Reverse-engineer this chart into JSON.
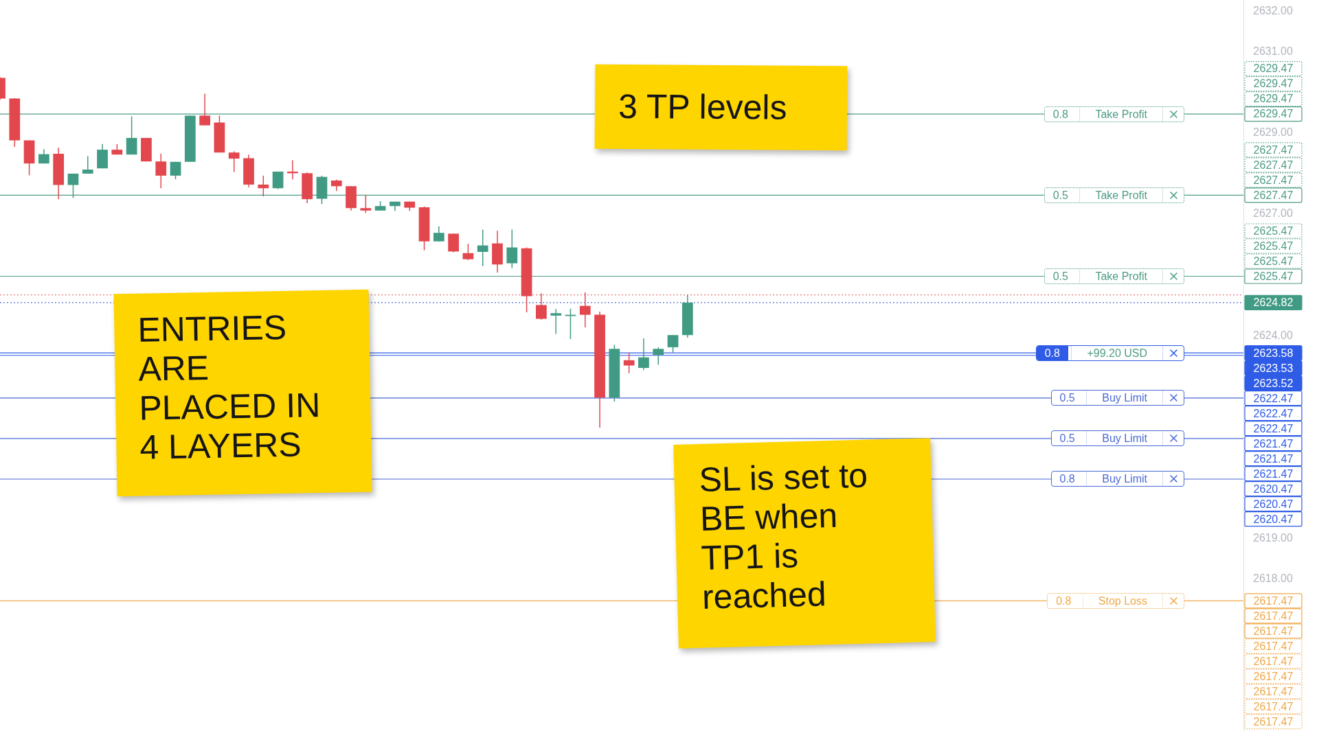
{
  "chart_data": {
    "type": "candlestick",
    "categories": [
      null,
      null,
      null,
      null,
      null,
      null,
      null,
      null,
      null,
      null,
      null,
      null,
      null,
      null,
      null,
      null,
      null,
      null,
      null,
      null,
      null,
      null,
      null,
      null,
      null,
      null,
      null,
      null,
      null,
      null,
      null,
      null,
      null,
      null,
      null,
      null,
      null,
      null,
      null,
      null,
      null,
      null,
      null,
      null,
      null,
      null,
      null,
      null,
      null,
      null,
      null,
      null,
      null,
      null,
      null,
      null,
      null,
      null,
      null,
      null,
      null,
      null,
      null,
      null,
      null,
      null,
      null,
      null,
      null,
      null,
      null,
      null,
      null,
      null,
      null,
      null,
      null,
      null,
      null,
      null,
      null,
      null,
      null,
      null,
      null,
      null
    ],
    "ohlc": [
      [
        2630.36,
        2630.38,
        2629.82,
        2629.85
      ],
      [
        2629.85,
        2629.86,
        2628.66,
        2628.82
      ],
      [
        2628.82,
        2628.82,
        2627.96,
        2628.25
      ],
      [
        2628.25,
        2628.6,
        2628.25,
        2628.48
      ],
      [
        2628.49,
        2628.64,
        2627.37,
        2627.72
      ],
      [
        2627.72,
        2628.0,
        2627.4,
        2628.0
      ],
      [
        2628.0,
        2628.43,
        2628.0,
        2628.1
      ],
      [
        2628.13,
        2628.73,
        2628.13,
        2628.59
      ],
      [
        2628.59,
        2628.73,
        2628.47,
        2628.47
      ],
      [
        2628.47,
        2629.41,
        2628.47,
        2628.88
      ],
      [
        2628.88,
        2628.88,
        2628.3,
        2628.3
      ],
      [
        2628.3,
        2628.49,
        2627.64,
        2627.95
      ],
      [
        2627.95,
        2628.29,
        2627.86,
        2628.29
      ],
      [
        2628.29,
        2629.43,
        2628.29,
        2629.43
      ],
      [
        2629.43,
        2629.97,
        2629.19,
        2629.19
      ],
      [
        2629.26,
        2629.43,
        2628.52,
        2628.52
      ],
      [
        2628.52,
        2628.55,
        2628.04,
        2628.37
      ],
      [
        2628.38,
        2628.47,
        2627.66,
        2627.73
      ],
      [
        2627.73,
        2627.95,
        2627.44,
        2627.64
      ],
      [
        2627.64,
        2628.05,
        2627.62,
        2628.05
      ],
      [
        2628.05,
        2628.33,
        2627.86,
        2628.01
      ],
      [
        2628.01,
        2628.03,
        2627.27,
        2627.37
      ],
      [
        2627.38,
        2627.95,
        2627.25,
        2627.92
      ],
      [
        2627.83,
        2627.85,
        2627.57,
        2627.69
      ],
      [
        2627.69,
        2627.69,
        2627.09,
        2627.15
      ],
      [
        2627.15,
        2627.47,
        2627.03,
        2627.09
      ],
      [
        2627.09,
        2627.32,
        2627.09,
        2627.2
      ],
      [
        2627.2,
        2627.31,
        2627.08,
        2627.31
      ],
      [
        2627.31,
        2627.31,
        2627.08,
        2627.16
      ],
      [
        2627.17,
        2627.19,
        2626.11,
        2626.33
      ],
      [
        2626.33,
        2626.7,
        2626.33,
        2626.54
      ],
      [
        2626.52,
        2626.52,
        2626.06,
        2626.08
      ],
      [
        2626.04,
        2626.27,
        2625.87,
        2625.89
      ],
      [
        2626.07,
        2626.62,
        2625.72,
        2626.23
      ],
      [
        2626.28,
        2626.59,
        2625.56,
        2625.76
      ],
      [
        2625.79,
        2626.62,
        2625.67,
        2626.18
      ],
      [
        2626.16,
        2626.18,
        2624.58,
        2624.98
      ],
      [
        2624.76,
        2625.05,
        2624.4,
        2624.42
      ],
      [
        2624.5,
        2624.66,
        2624.05,
        2624.56
      ],
      [
        2624.49,
        2624.67,
        2623.92,
        2624.52
      ],
      [
        2624.74,
        2625.07,
        2624.21,
        2624.52
      ],
      [
        2624.52,
        2624.6,
        2621.74,
        2622.48
      ],
      [
        2622.48,
        2623.78,
        2622.38,
        2623.68
      ],
      [
        2623.4,
        2623.58,
        2623.08,
        2623.27
      ],
      [
        2623.21,
        2623.94,
        2623.16,
        2623.47
      ],
      [
        2623.53,
        2623.72,
        2623.29,
        2623.68
      ],
      [
        2623.72,
        2624.02,
        2623.59,
        2624.02
      ],
      [
        2624.02,
        2625.01,
        2623.96,
        2624.82
      ],
      null,
      null,
      null,
      null,
      null,
      null,
      null,
      null,
      null,
      null,
      null,
      null,
      null,
      null,
      null,
      null,
      null,
      null,
      null,
      null,
      null,
      null,
      null,
      null,
      null,
      null,
      null,
      null,
      null,
      null,
      null,
      null,
      null,
      null,
      null,
      null,
      null,
      null
    ],
    "colors": [
      "#e3474e",
      "#e3474e",
      "#e3474e",
      "#419b84",
      "#e3474e",
      "#419b84",
      "#419b84",
      "#419b84",
      "#e3474e",
      "#419b84",
      "#e3474e",
      "#e3474e",
      "#419b84",
      "#419b84",
      "#e3474e",
      "#e3474e",
      "#e3474e",
      "#e3474e",
      "#e3474e",
      "#419b84",
      "#e3474e",
      "#e3474e",
      "#419b84",
      "#e3474e",
      "#e3474e",
      "#e3474e",
      "#419b84",
      "#419b84",
      "#e3474e",
      "#e3474e",
      "#419b84",
      "#e3474e",
      "#e3474e",
      "#419b84",
      "#e3474e",
      "#419b84",
      "#e3474e",
      "#e3474e",
      "#419b84",
      "#419b84",
      "#e3474e",
      "#e3474e",
      "#419b84",
      "#e3474e",
      "#419b84",
      "#419b84",
      "#419b84",
      "#419b84",
      null,
      null,
      null,
      null,
      null,
      null,
      null,
      null,
      null,
      null,
      null,
      null,
      null,
      null,
      null,
      null,
      null,
      null,
      null,
      null,
      null,
      null,
      null,
      null,
      null,
      null,
      null,
      null,
      null,
      null,
      null,
      null,
      null,
      null,
      null,
      null,
      null,
      null
    ],
    "ylim": [
      2614.26,
      2632.28
    ],
    "yticks": [
      {
        "value": 2618,
        "label": "2618.00"
      },
      {
        "value": 2619,
        "label": "2619.00"
      },
      {
        "value": 2624,
        "label": "2624.00"
      },
      {
        "value": 2627,
        "label": "2627.00"
      },
      {
        "value": 2629,
        "label": "2629.00"
      },
      {
        "value": 2631,
        "label": "2631.00"
      },
      {
        "value": 2632,
        "label": "2632.00"
      }
    ],
    "tick_labels": "y",
    "grid": false,
    "ref_lines": [
      {
        "axis": "y",
        "value": 2629.47,
        "label": "0.8 Take Profit",
        "color": "#4f9c86"
      },
      {
        "axis": "y",
        "value": 2627.47,
        "label": "0.5 Take Profit",
        "color": "#4f9c86"
      },
      {
        "axis": "y",
        "value": 2625.47,
        "label": "0.5 Take Profit",
        "color": "#4f9c86"
      },
      {
        "axis": "y",
        "value": 2625.01,
        "color": "#e57373",
        "line_style": "dotted"
      },
      {
        "axis": "y",
        "value": 2624.82,
        "color": "#4a69d6",
        "line_style": "dotted"
      },
      {
        "axis": "y",
        "value": 2623.58,
        "label": "0.8 +99.20 USD",
        "color": "#2f5ce6"
      },
      {
        "axis": "y",
        "value": 2623.52,
        "color": "#2f5ce6"
      },
      {
        "axis": "y",
        "value": 2622.47,
        "label": "0.5 Buy Limit",
        "color": "#4a69d6"
      },
      {
        "axis": "y",
        "value": 2621.47,
        "label": "0.5 Buy Limit",
        "color": "#4a69d6"
      },
      {
        "axis": "y",
        "value": 2620.47,
        "label": "0.8 Buy Limit",
        "color": "#4a69d6"
      },
      {
        "axis": "y",
        "value": 2617.47,
        "label": "0.8 Stop Loss",
        "color": "#f0a848"
      }
    ],
    "annotations": [
      "3 TP levels",
      "ENTRIES ARE PLACED IN 4 LAYERS",
      "SL is set to BE when TP1 is reached",
      "2629.47",
      "2629.47",
      "2629.47",
      "2629.47",
      "2627.47",
      "2627.47",
      "2627.47",
      "2627.47",
      "2625.47",
      "2625.47",
      "2625.47",
      "2625.47",
      "2624.82",
      "2623.58",
      "2623.53",
      "2623.52",
      "2622.47",
      "2622.47",
      "2622.47",
      "2621.47",
      "2621.47",
      "2621.47",
      "2620.47",
      "2620.47",
      "2620.47",
      "2617.47",
      "2617.47",
      "2617.47",
      "2617.47",
      "2617.47",
      "2617.47",
      "2617.47",
      "2617.47",
      "2617.47"
    ]
  }
}
